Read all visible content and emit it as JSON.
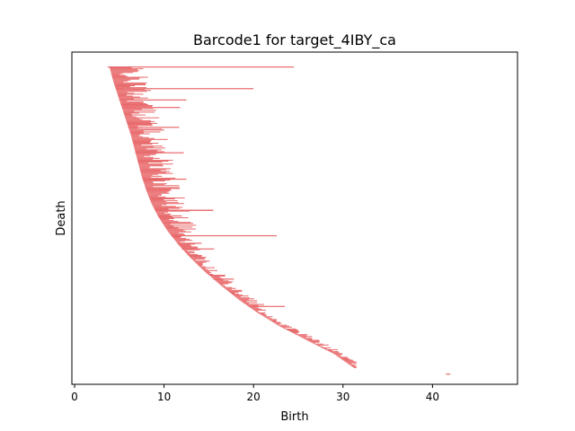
{
  "chart_data": {
    "type": "barcode",
    "title": "Barcode1 for target_4IBY_ca",
    "xlabel": "Birth",
    "ylabel": "Death",
    "xlim": [
      -0.3,
      49.5
    ],
    "xticks": [
      0,
      10,
      20,
      30,
      40
    ],
    "yticks": [],
    "grid": false,
    "bar_color": "#e8696b",
    "bar_count": 320,
    "curve_x_samples": [
      3.9,
      4.3,
      4.8,
      5.3,
      5.8,
      6.3,
      6.7,
      7.1,
      7.5,
      8.0,
      8.6,
      9.4,
      10.4,
      11.6,
      13.0,
      14.6,
      16.4,
      18.3,
      20.5,
      23.0,
      26.0,
      29.0,
      31.2
    ],
    "long_bars": [
      {
        "start": 3.7,
        "end": 24.5
      },
      {
        "start": 4.6,
        "end": 20.0
      },
      {
        "start": 5.0,
        "end": 12.5
      },
      {
        "start": 5.3,
        "end": 11.8
      },
      {
        "start": 6.0,
        "end": 11.7
      },
      {
        "start": 6.8,
        "end": 12.2
      },
      {
        "start": 7.6,
        "end": 12.5
      },
      {
        "start": 9.0,
        "end": 15.5
      },
      {
        "start": 9.0,
        "end": 15.5
      },
      {
        "start": 9.3,
        "end": 12.0
      },
      {
        "start": 9.8,
        "end": 13.0
      },
      {
        "start": 10.8,
        "end": 22.6
      },
      {
        "start": 11.5,
        "end": 14.2
      },
      {
        "start": 12.0,
        "end": 15.6
      },
      {
        "start": 15.5,
        "end": 17.8
      },
      {
        "start": 19.5,
        "end": 23.5
      },
      {
        "start": 41.5,
        "end": 42.0
      }
    ]
  }
}
